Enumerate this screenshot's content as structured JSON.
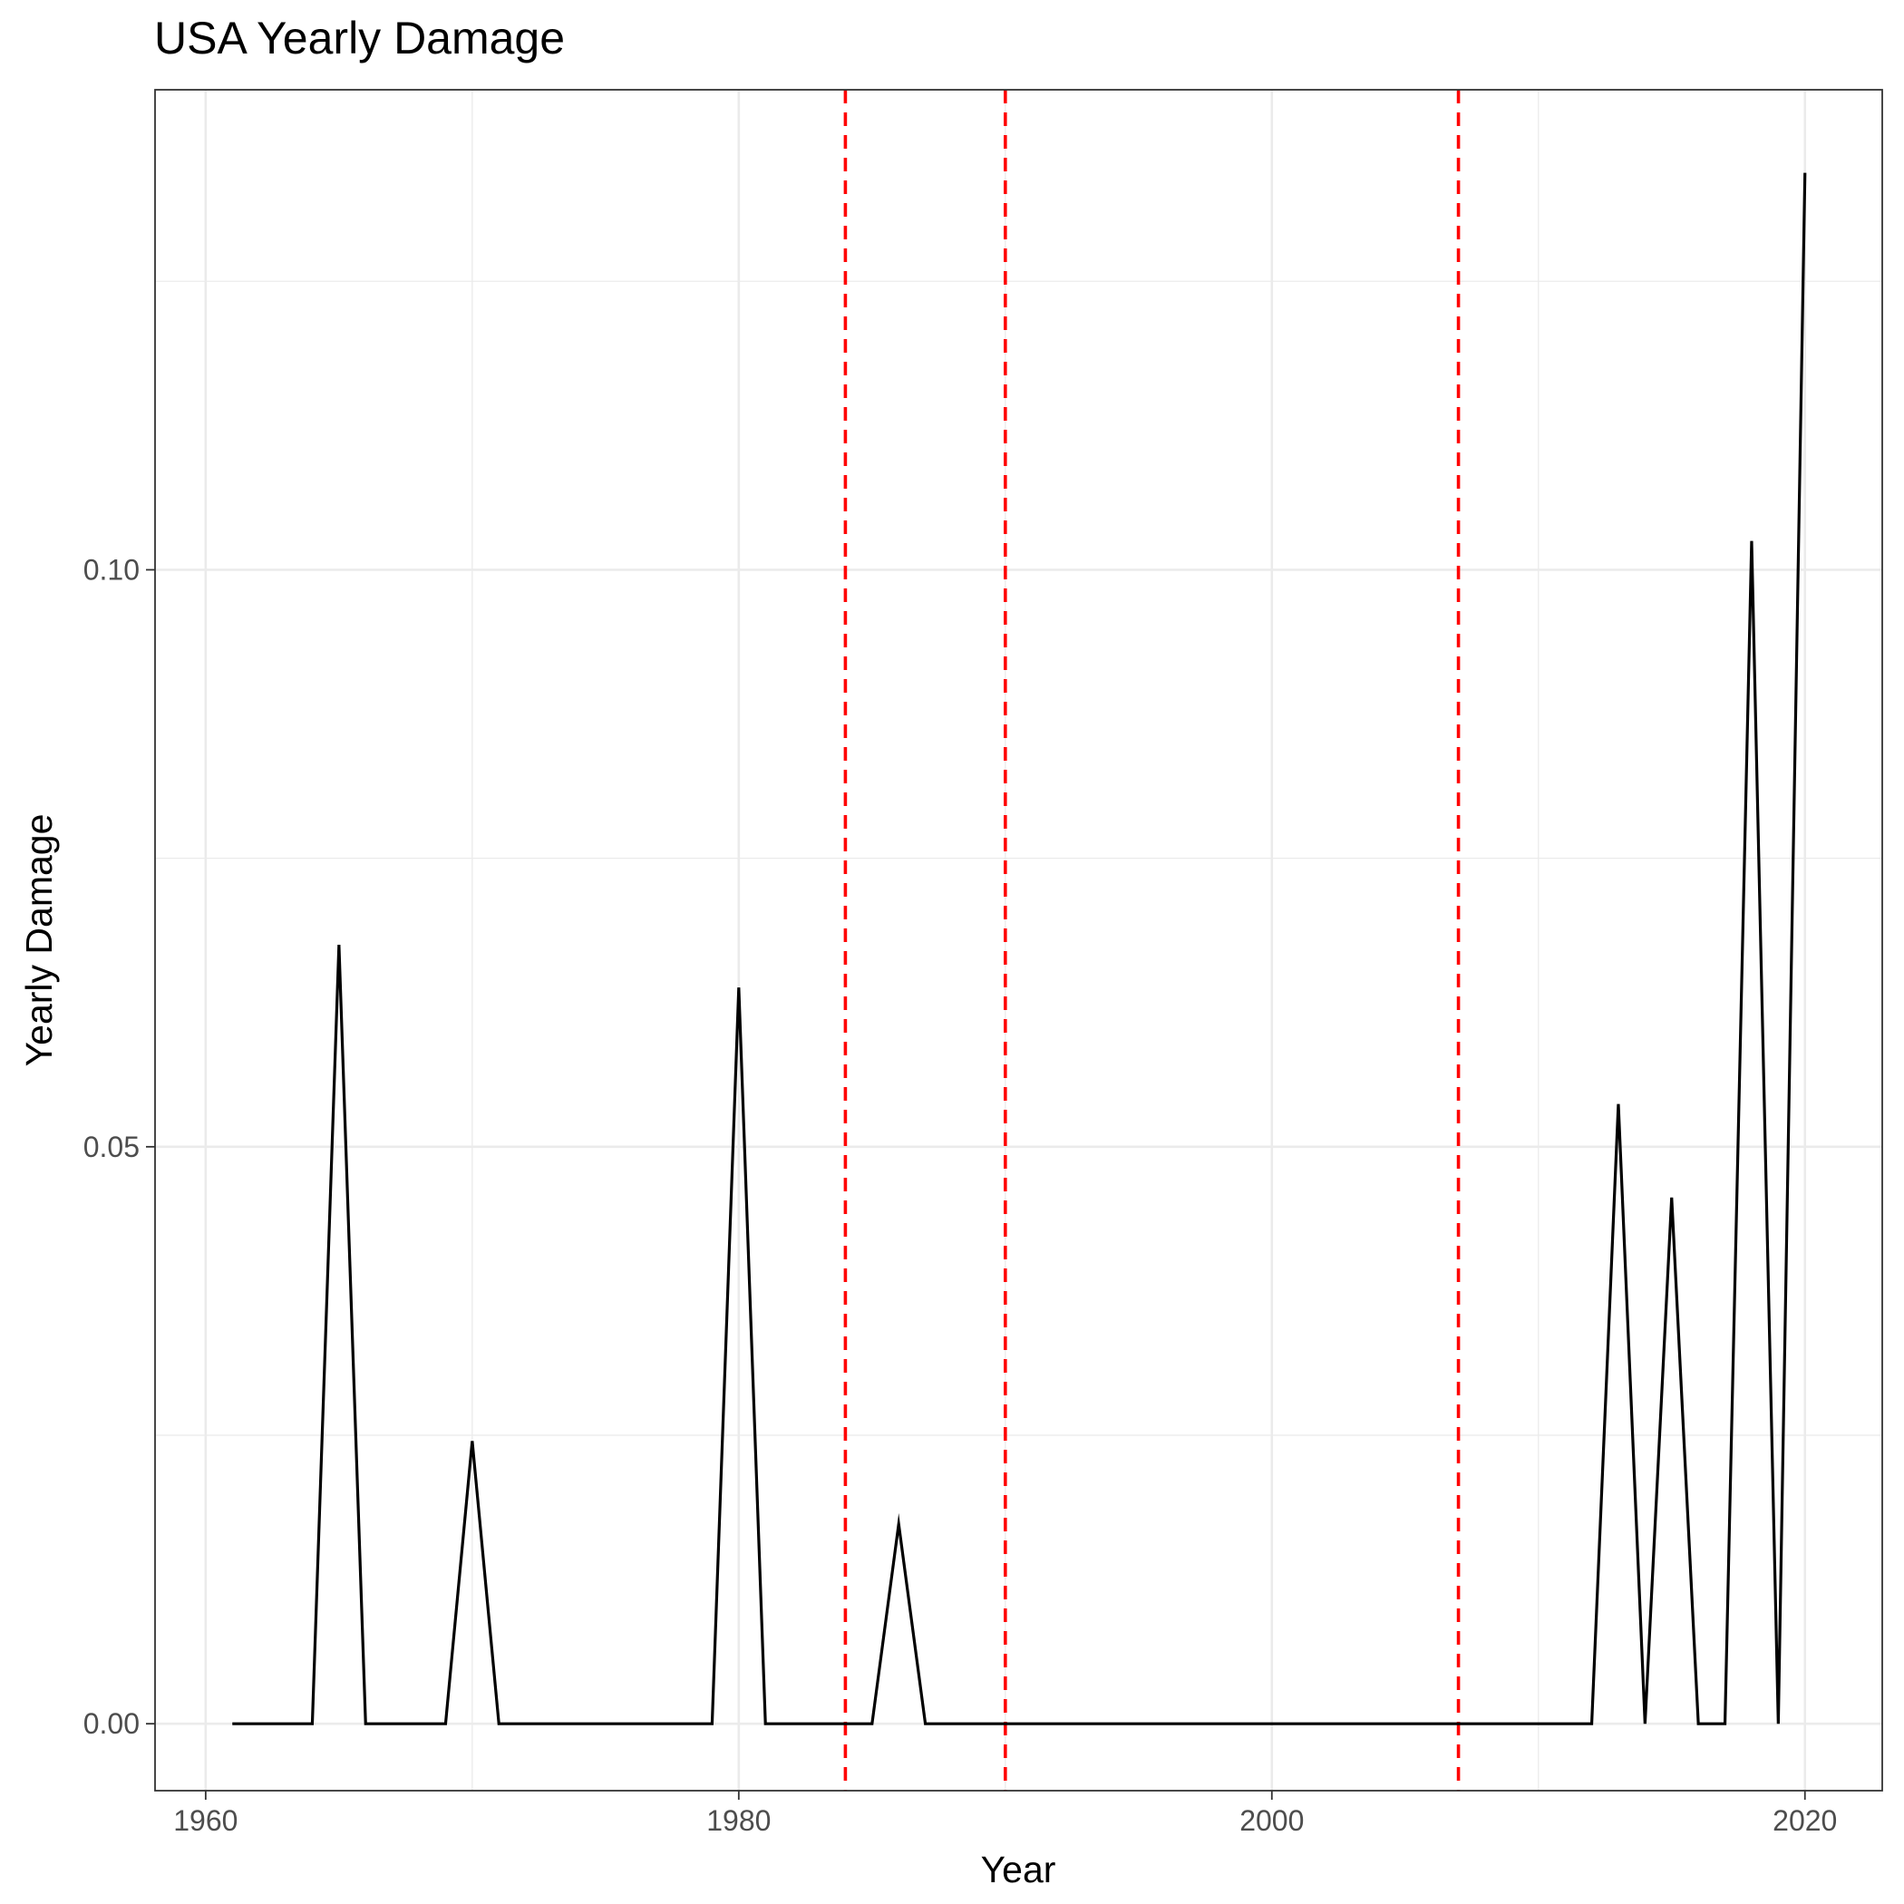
{
  "chart_data": {
    "type": "line",
    "title": "USA Yearly Damage",
    "xlabel": "Year",
    "ylabel": "Yearly Damage",
    "xlim": [
      1958.1,
      2022.9
    ],
    "ylim": [
      -0.0058,
      0.1416
    ],
    "x_ticks": [
      1960,
      1980,
      2000,
      2020
    ],
    "x_tick_labels": [
      "1960",
      "1980",
      "2000",
      "2020"
    ],
    "x_minor_ticks": [
      1970,
      1990,
      2010
    ],
    "y_ticks": [
      0,
      0.05,
      0.1
    ],
    "y_tick_labels": [
      "0.00",
      "0.05",
      "0.10"
    ],
    "y_minor_ticks": [
      0.025,
      0.075,
      0.125
    ],
    "grid": true,
    "legend": "none",
    "line_color": "#000000",
    "reference_line_color": "#ff0000",
    "reference_lines_x": [
      1984,
      1990,
      2007
    ],
    "series": [
      {
        "x": [
          1961,
          1962,
          1963,
          1964,
          1965,
          1966,
          1967,
          1968,
          1969,
          1970,
          1971,
          1972,
          1973,
          1974,
          1975,
          1976,
          1977,
          1978,
          1979,
          1980,
          1981,
          1982,
          1983,
          1984,
          1985,
          1986,
          1987,
          1988,
          1989,
          1990,
          1991,
          1992,
          1993,
          1994,
          1995,
          1996,
          1997,
          1998,
          1999,
          2000,
          2001,
          2002,
          2003,
          2004,
          2005,
          2006,
          2007,
          2008,
          2009,
          2010,
          2011,
          2012,
          2013,
          2014,
          2015,
          2016,
          2017,
          2018,
          2019,
          2020
        ],
        "values": [
          0,
          0,
          0,
          0,
          0.0675,
          0,
          0,
          0,
          0,
          0.0245,
          0,
          0,
          0,
          0,
          0,
          0,
          0,
          0,
          0,
          0.0638,
          0,
          0,
          0,
          0,
          0,
          0.0173,
          0,
          0,
          0,
          0,
          0,
          0,
          0,
          0,
          0,
          0,
          0,
          0,
          0,
          0,
          0,
          0,
          0,
          0,
          0,
          0,
          0,
          0,
          0,
          0,
          0,
          0,
          0.0537,
          0,
          0.0456,
          0,
          0,
          0.1025,
          0,
          0.1344
        ]
      }
    ]
  }
}
